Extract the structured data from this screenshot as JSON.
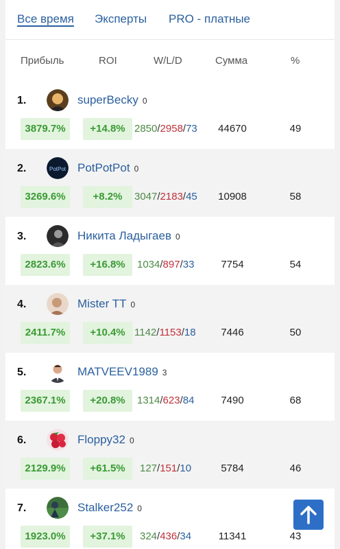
{
  "tabs": [
    "Все время",
    "Эксперты",
    "PRO - платные"
  ],
  "columns": {
    "profit": "Прибыль",
    "roi": "ROI",
    "wld": "W/L/D",
    "sum": "Сумма",
    "pct": "%"
  },
  "rows": [
    {
      "rank": "1.",
      "name": "superBecky",
      "count": "0",
      "profit": "3879.7%",
      "roi": "+14.8%",
      "w": "2850",
      "l": "2958",
      "d": "73",
      "sum": "44670",
      "pct": "49"
    },
    {
      "rank": "2.",
      "name": "PotPotPot",
      "count": "0",
      "profit": "3269.6%",
      "roi": "+8.2%",
      "w": "3047",
      "l": "2183",
      "d": "45",
      "sum": "10908",
      "pct": "58"
    },
    {
      "rank": "3.",
      "name": "Никита Ладыгаев",
      "count": "0",
      "profit": "2823.6%",
      "roi": "+16.8%",
      "w": "1034",
      "l": "897",
      "d": "33",
      "sum": "7754",
      "pct": "54"
    },
    {
      "rank": "4.",
      "name": "Mister TT",
      "count": "0",
      "profit": "2411.7%",
      "roi": "+10.4%",
      "w": "1142",
      "l": "1153",
      "d": "18",
      "sum": "7446",
      "pct": "50"
    },
    {
      "rank": "5.",
      "name": "MATVEEV1989",
      "count": "3",
      "profit": "2367.1%",
      "roi": "+20.8%",
      "w": "1314",
      "l": "623",
      "d": "84",
      "sum": "7490",
      "pct": "68"
    },
    {
      "rank": "6.",
      "name": "Floppy32",
      "count": "0",
      "profit": "2129.9%",
      "roi": "+61.5%",
      "w": "127",
      "l": "151",
      "d": "10",
      "sum": "5784",
      "pct": "46"
    },
    {
      "rank": "7.",
      "name": "Stalker252",
      "count": "0",
      "profit": "1923.0%",
      "roi": "+37.1%",
      "w": "324",
      "l": "436",
      "d": "34",
      "sum": "11341",
      "pct": "43"
    }
  ],
  "scroll_top_icon": "arrow-up-icon"
}
